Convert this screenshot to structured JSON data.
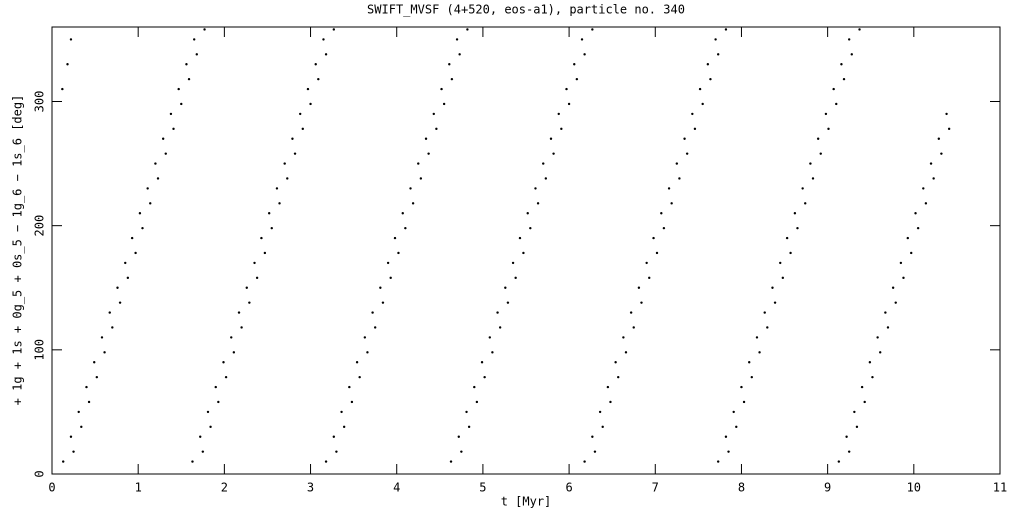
{
  "chart_data": {
    "type": "scatter",
    "title": "SWIFT_MVSF (4+520, eos-a1), particle no. 340",
    "x_label": "t [Myr]",
    "y_label": "+ 1g + 1s + 0g_5 + 0s_5 − 1g_6 − 1s_6 [deg]",
    "color": "#000000",
    "xlim": [
      0,
      11
    ],
    "xticks": [
      0,
      1,
      2,
      3,
      4,
      5,
      6,
      7,
      8,
      9,
      10,
      11
    ],
    "ylim": [
      0,
      360
    ],
    "yticks": [
      0,
      100,
      200,
      300
    ],
    "x": [
      0.12,
      0.18,
      0.22,
      0.13,
      0.22,
      0.31,
      0.4,
      0.49,
      0.58,
      0.67,
      0.76,
      0.85,
      0.93,
      1.02,
      1.11,
      1.2,
      1.29,
      1.38,
      1.47,
      1.56,
      1.65,
      0.25,
      0.34,
      0.43,
      0.52,
      0.61,
      0.7,
      0.79,
      0.88,
      0.97,
      1.05,
      1.14,
      1.23,
      1.32,
      1.41,
      1.5,
      1.59,
      1.68,
      1.77,
      1.63,
      1.72,
      1.81,
      1.9,
      1.99,
      2.08,
      2.17,
      2.26,
      2.35,
      2.43,
      2.52,
      2.61,
      2.7,
      2.79,
      2.88,
      2.97,
      3.06,
      3.15,
      1.75,
      1.84,
      1.93,
      2.02,
      2.11,
      2.2,
      2.29,
      2.38,
      2.47,
      2.55,
      2.64,
      2.73,
      2.82,
      2.91,
      3.0,
      3.09,
      3.18,
      3.27,
      3.18,
      3.27,
      3.36,
      3.45,
      3.54,
      3.63,
      3.72,
      3.81,
      3.9,
      3.98,
      4.07,
      4.16,
      4.25,
      4.34,
      4.43,
      4.52,
      4.61,
      4.7,
      3.3,
      3.39,
      3.48,
      3.57,
      3.66,
      3.75,
      3.84,
      3.93,
      4.02,
      4.1,
      4.19,
      4.28,
      4.37,
      4.46,
      4.55,
      4.64,
      4.73,
      4.82,
      4.63,
      4.72,
      4.81,
      4.9,
      4.99,
      5.08,
      5.17,
      5.26,
      5.35,
      5.43,
      5.52,
      5.61,
      5.7,
      5.79,
      5.88,
      5.97,
      6.06,
      6.15,
      4.75,
      4.84,
      4.93,
      5.02,
      5.11,
      5.2,
      5.29,
      5.38,
      5.47,
      5.55,
      5.64,
      5.73,
      5.82,
      5.91,
      6.0,
      6.09,
      6.18,
      6.27,
      6.18,
      6.27,
      6.36,
      6.45,
      6.54,
      6.63,
      6.72,
      6.81,
      6.9,
      6.98,
      7.07,
      7.16,
      7.25,
      7.34,
      7.43,
      7.52,
      7.61,
      7.7,
      6.3,
      6.39,
      6.48,
      6.57,
      6.66,
      6.75,
      6.84,
      6.93,
      7.02,
      7.1,
      7.19,
      7.28,
      7.37,
      7.46,
      7.55,
      7.64,
      7.73,
      7.82,
      7.73,
      7.82,
      7.91,
      8.0,
      8.09,
      8.18,
      8.27,
      8.36,
      8.45,
      8.53,
      8.62,
      8.71,
      8.8,
      8.89,
      8.98,
      9.07,
      9.16,
      9.25,
      7.85,
      7.94,
      8.03,
      8.12,
      8.21,
      8.3,
      8.39,
      8.48,
      8.57,
      8.65,
      8.74,
      8.83,
      8.92,
      9.01,
      9.1,
      9.19,
      9.28,
      9.37,
      9.13,
      9.22,
      9.31,
      9.4,
      9.49,
      9.58,
      9.67,
      9.76,
      9.85,
      9.93,
      10.02,
      10.11,
      10.2,
      10.29,
      10.38,
      9.25,
      9.34,
      9.43,
      9.52,
      9.61,
      9.7,
      9.79,
      9.88,
      9.97,
      10.05,
      10.14,
      10.23,
      10.32,
      10.41
    ],
    "values": [
      310,
      330,
      350,
      10,
      30,
      50,
      70,
      90,
      110,
      130,
      150,
      170,
      190,
      210,
      230,
      250,
      270,
      290,
      310,
      330,
      350,
      18,
      38,
      58,
      78,
      98,
      118,
      138,
      158,
      178,
      198,
      218,
      238,
      258,
      278,
      298,
      318,
      338,
      358,
      10,
      30,
      50,
      70,
      90,
      110,
      130,
      150,
      170,
      190,
      210,
      230,
      250,
      270,
      290,
      310,
      330,
      350,
      18,
      38,
      58,
      78,
      98,
      118,
      138,
      158,
      178,
      198,
      218,
      238,
      258,
      278,
      298,
      318,
      338,
      358,
      10,
      30,
      50,
      70,
      90,
      110,
      130,
      150,
      170,
      190,
      210,
      230,
      250,
      270,
      290,
      310,
      330,
      350,
      18,
      38,
      58,
      78,
      98,
      118,
      138,
      158,
      178,
      198,
      218,
      238,
      258,
      278,
      298,
      318,
      338,
      358,
      10,
      30,
      50,
      70,
      90,
      110,
      130,
      150,
      170,
      190,
      210,
      230,
      250,
      270,
      290,
      310,
      330,
      350,
      18,
      38,
      58,
      78,
      98,
      118,
      138,
      158,
      178,
      198,
      218,
      238,
      258,
      278,
      298,
      318,
      338,
      358,
      10,
      30,
      50,
      70,
      90,
      110,
      130,
      150,
      170,
      190,
      210,
      230,
      250,
      270,
      290,
      310,
      330,
      350,
      18,
      38,
      58,
      78,
      98,
      118,
      138,
      158,
      178,
      198,
      218,
      238,
      258,
      278,
      298,
      318,
      338,
      358,
      10,
      30,
      50,
      70,
      90,
      110,
      130,
      150,
      170,
      190,
      210,
      230,
      250,
      270,
      290,
      310,
      330,
      350,
      18,
      38,
      58,
      78,
      98,
      118,
      138,
      158,
      178,
      198,
      218,
      238,
      258,
      278,
      298,
      318,
      338,
      358,
      10,
      30,
      50,
      70,
      90,
      110,
      130,
      150,
      170,
      190,
      210,
      230,
      250,
      270,
      290,
      18,
      38,
      58,
      78,
      98,
      118,
      138,
      158,
      178,
      198,
      218,
      238,
      258,
      278
    ]
  }
}
